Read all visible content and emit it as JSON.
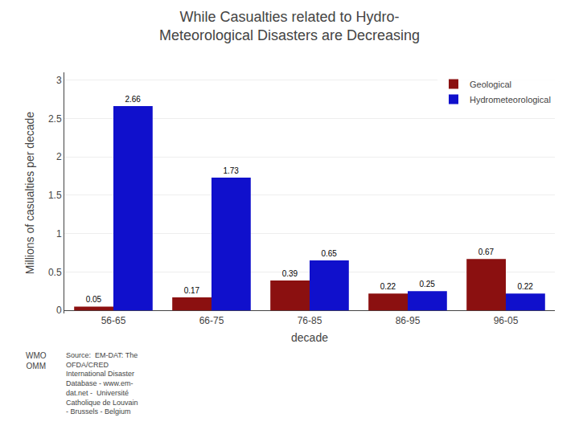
{
  "chart_data": {
    "type": "bar",
    "title": "While Casualties related to Hydro-\nMeteorological Disasters are Decreasing",
    "ylabel": "Millions of casualties per decade",
    "xlabel": "decade",
    "categories": [
      "56-65",
      "66-75",
      "76-85",
      "86-95",
      "96-05"
    ],
    "series": [
      {
        "name": "Geological",
        "color": "#8B1010",
        "values": [
          0.05,
          0.17,
          0.39,
          0.22,
          0.67
        ]
      },
      {
        "name": "Hydrometeorological",
        "color": "#1010CC",
        "values": [
          2.66,
          1.73,
          0.65,
          0.25,
          0.22
        ]
      }
    ],
    "ylim": [
      -0.04,
      3.1
    ],
    "yticks": [
      0,
      0.5,
      1,
      1.5,
      2,
      2.5,
      3
    ],
    "grid": true,
    "legend": "upper right",
    "data_labels": true,
    "annotations": [
      "WMO\nOMM",
      "Source:  EM-DAT: The\nOFDA/CRED\nInternational Disaster\nDatabase - www.em-\ndat.net -  Université\nCatholique de Louvain\n- Brussels - Belgium"
    ]
  }
}
